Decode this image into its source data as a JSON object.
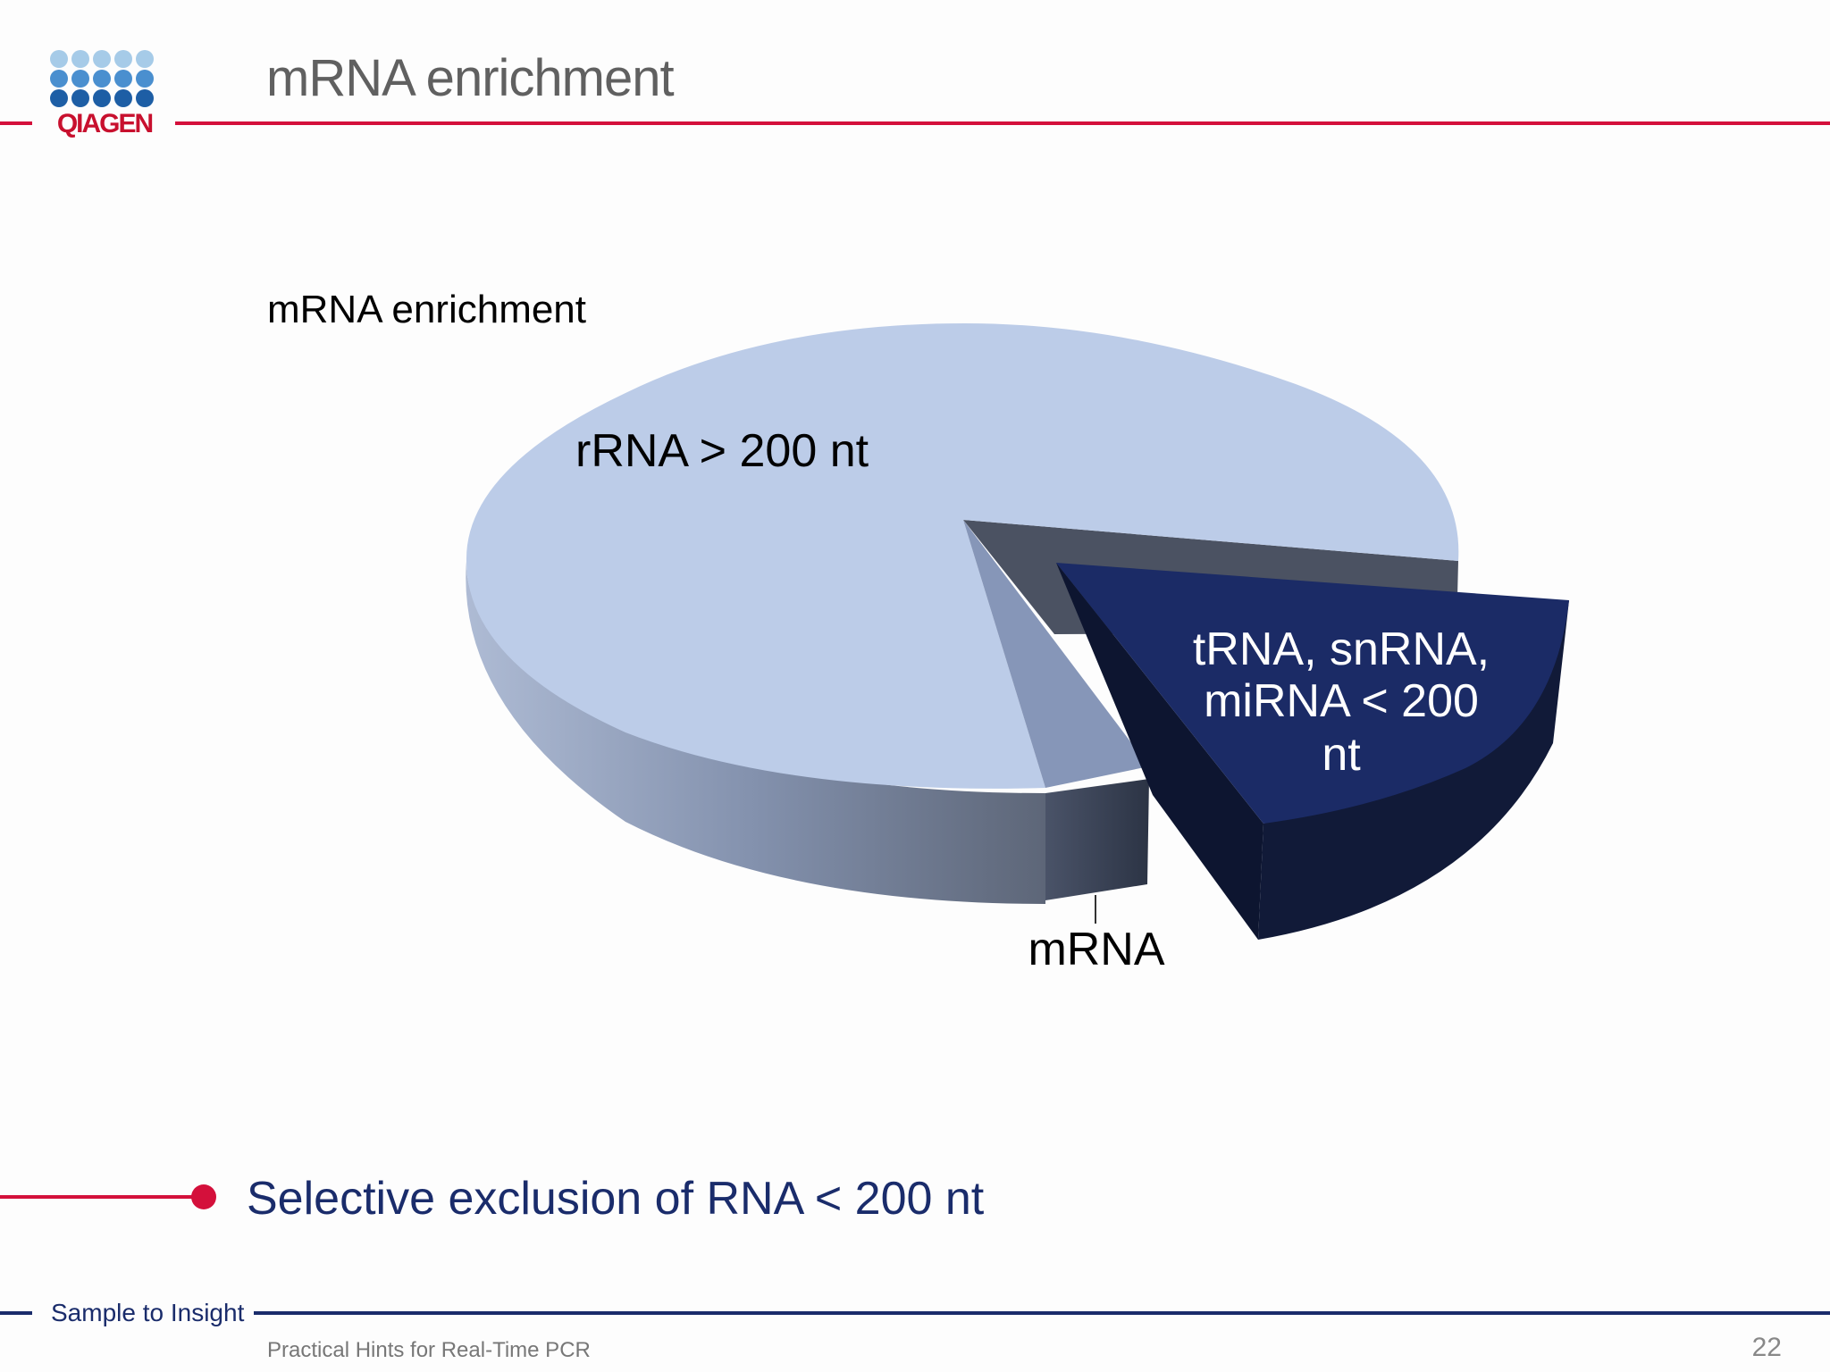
{
  "header": {
    "logo_text": "QIAGEN",
    "title": "mRNA enrichment"
  },
  "chart_data": {
    "type": "pie",
    "title": "mRNA enrichment",
    "style": "3d-exploded",
    "slices": [
      {
        "label": "rRNA > 200 nt",
        "value": 80,
        "color": "#bccce8"
      },
      {
        "label": "tRNA, snRNA, miRNA < 200 nt",
        "value": 16,
        "color": "#1b2b66",
        "exploded": true
      },
      {
        "label": "mRNA",
        "value": 4,
        "color": "#8696b8"
      }
    ],
    "labels": {
      "rrna": "rRNA > 200 nt",
      "trna_line1": "tRNA, snRNA,",
      "trna_line2": "miRNA < 200",
      "trna_line3": "nt",
      "mrna": "mRNA"
    }
  },
  "bullet": {
    "text": "Selective exclusion of RNA < 200 nt"
  },
  "footer": {
    "tagline": "Sample to Insight",
    "text": "Practical Hints for Real-Time PCR",
    "page_number": "22"
  },
  "colors": {
    "accent_red": "#d4103b",
    "navy": "#1a2c6b",
    "logo_dot_light": "#a6cbe8",
    "logo_dot_mid": "#4a8fcf",
    "logo_dot_dark": "#1d5ea5"
  }
}
